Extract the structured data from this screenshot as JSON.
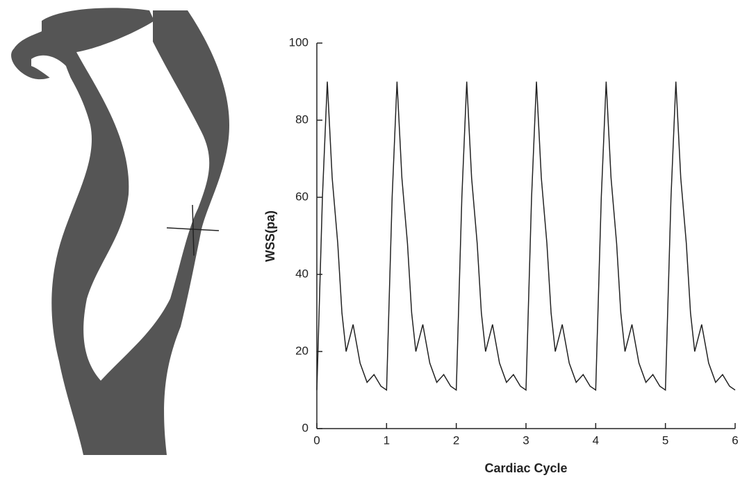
{
  "chart_data": {
    "type": "line",
    "xlabel": "Cardiac Cycle",
    "ylabel": "WSS(pa)",
    "x": [
      0,
      0.08,
      0.15,
      0.22,
      0.3,
      0.36,
      0.42,
      0.52,
      0.62,
      0.72,
      0.82,
      0.92,
      1,
      1.08,
      1.15,
      1.22,
      1.3,
      1.36,
      1.42,
      1.52,
      1.62,
      1.72,
      1.82,
      1.92,
      2,
      2.08,
      2.15,
      2.22,
      2.3,
      2.36,
      2.42,
      2.52,
      2.62,
      2.72,
      2.82,
      2.92,
      3,
      3.08,
      3.15,
      3.22,
      3.3,
      3.36,
      3.42,
      3.52,
      3.62,
      3.72,
      3.82,
      3.92,
      4,
      4.08,
      4.15,
      4.22,
      4.3,
      4.36,
      4.42,
      4.52,
      4.62,
      4.72,
      4.82,
      4.92,
      5,
      5.08,
      5.15,
      5.22,
      5.3,
      5.36,
      5.42,
      5.52,
      5.62,
      5.72,
      5.82,
      5.92,
      6
    ],
    "series": [
      {
        "color": "#222222",
        "values": [
          10,
          60,
          90,
          65,
          48,
          30,
          20,
          27,
          17,
          12,
          14,
          11,
          10,
          60,
          90,
          65,
          48,
          30,
          20,
          27,
          17,
          12,
          14,
          11,
          10,
          60,
          90,
          65,
          48,
          30,
          20,
          27,
          17,
          12,
          14,
          11,
          10,
          60,
          90,
          65,
          48,
          30,
          20,
          27,
          17,
          12,
          14,
          11,
          10,
          60,
          90,
          65,
          48,
          30,
          20,
          27,
          17,
          12,
          14,
          11,
          10,
          60,
          90,
          65,
          48,
          30,
          20,
          27,
          17,
          12,
          14,
          11,
          10
        ]
      }
    ],
    "xlim": [
      0,
      6
    ],
    "xticks": [
      0,
      1,
      2,
      3,
      4,
      5,
      6
    ],
    "ylim": [
      0,
      100
    ],
    "yticks": [
      0,
      20,
      40,
      60,
      80,
      100
    ]
  }
}
